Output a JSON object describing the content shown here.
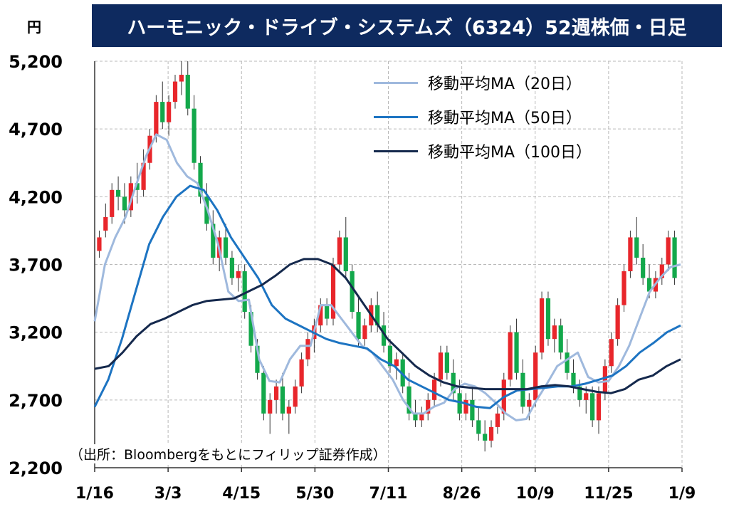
{
  "title": "ハーモニック・ドライブ・システムズ（6324）52週株価・日足",
  "unit_label": "円",
  "source_note": "（出所：Bloombergをもとにフィリップ証券作成）",
  "chart_data": {
    "type": "candlestick",
    "ylim": [
      2200,
      5200
    ],
    "y_ticks": [
      "5,200",
      "4,700",
      "4,200",
      "3,700",
      "3,200",
      "2,700",
      "2,200"
    ],
    "y_tick_values": [
      5200,
      4700,
      4200,
      3700,
      3200,
      2700,
      2200
    ],
    "x_ticks": [
      "1/16",
      "3/3",
      "4/15",
      "5/30",
      "7/11",
      "8/26",
      "10/9",
      "11/25",
      "1/9"
    ],
    "grid": true,
    "legend_position": "top-right",
    "colors": {
      "up": "#e8262b",
      "down": "#13a84b",
      "ma20": "#9fb9dd",
      "ma50": "#1d74c2",
      "ma100": "#15294d"
    },
    "series": [
      {
        "name": "移動平均MA（20日）",
        "values": [
          3280,
          3700,
          3900,
          4050,
          4280,
          4500,
          4660,
          4620,
          4450,
          4350,
          4300,
          4100,
          3850,
          3500,
          3430,
          3440,
          3000,
          2840,
          2830,
          3000,
          3100,
          3100,
          3400,
          3400,
          3300,
          3200,
          3100,
          3050,
          2950,
          2850,
          2700,
          2600,
          2600,
          2650,
          2680,
          2780,
          2820,
          2800,
          2750,
          2680,
          2600,
          2550,
          2560,
          2700,
          2820,
          2950,
          3000,
          3050,
          2870,
          2830,
          2840,
          2950,
          3100,
          3300,
          3500,
          3600,
          3680,
          3700
        ]
      },
      {
        "name": "移動平均MA（50日）",
        "values": [
          2650,
          2850,
          3150,
          3500,
          3850,
          4050,
          4200,
          4280,
          4250,
          4100,
          3900,
          3750,
          3600,
          3400,
          3300,
          3250,
          3200,
          3150,
          3120,
          3100,
          3080,
          3000,
          2950,
          2850,
          2800,
          2750,
          2700,
          2680,
          2650,
          2640,
          2720,
          2770,
          2780,
          2790,
          2800,
          2800,
          2820,
          2850,
          2880,
          2950,
          3050,
          3120,
          3200,
          3250
        ]
      },
      {
        "name": "移動平均MA（100日）",
        "values": [
          2930,
          2950,
          3050,
          3170,
          3260,
          3300,
          3350,
          3400,
          3430,
          3440,
          3450,
          3500,
          3550,
          3620,
          3700,
          3740,
          3740,
          3700,
          3600,
          3450,
          3300,
          3150,
          3050,
          2950,
          2880,
          2830,
          2800,
          2790,
          2780,
          2780,
          2780,
          2780,
          2800,
          2810,
          2800,
          2780,
          2760,
          2750,
          2780,
          2850,
          2880,
          2950,
          3000
        ]
      },
      {
        "name": "candles",
        "values": [
          [
            3800,
            3950,
            3750,
            3900
          ],
          [
            3950,
            4150,
            3900,
            4050
          ],
          [
            4050,
            4300,
            4000,
            4250
          ],
          [
            4250,
            4350,
            4100,
            4200
          ],
          [
            4200,
            4300,
            4000,
            4100
          ],
          [
            4100,
            4350,
            4050,
            4300
          ],
          [
            4300,
            4450,
            4150,
            4250
          ],
          [
            4250,
            4550,
            4200,
            4450
          ],
          [
            4450,
            4700,
            4400,
            4650
          ],
          [
            4650,
            4950,
            4600,
            4900
          ],
          [
            4900,
            5050,
            4700,
            4750
          ],
          [
            4750,
            4950,
            4650,
            4900
          ],
          [
            4900,
            5100,
            4850,
            5050
          ],
          [
            5050,
            5200,
            4950,
            5100
          ],
          [
            5100,
            5200,
            4800,
            4850
          ],
          [
            4850,
            4950,
            4400,
            4450
          ],
          [
            4450,
            4500,
            4150,
            4200
          ],
          [
            4200,
            4300,
            3950,
            4000
          ],
          [
            4000,
            4100,
            3700,
            3750
          ],
          [
            3750,
            3950,
            3650,
            3900
          ],
          [
            3900,
            4000,
            3700,
            3750
          ],
          [
            3750,
            3800,
            3550,
            3600
          ],
          [
            3600,
            3700,
            3500,
            3650
          ],
          [
            3650,
            3700,
            3300,
            3350
          ],
          [
            3350,
            3400,
            3050,
            3100
          ],
          [
            3100,
            3150,
            2850,
            2900
          ],
          [
            2900,
            2950,
            2550,
            2600
          ],
          [
            2600,
            2750,
            2450,
            2700
          ],
          [
            2700,
            2850,
            2600,
            2800
          ],
          [
            2800,
            2900,
            2550,
            2600
          ],
          [
            2600,
            2700,
            2450,
            2650
          ],
          [
            2650,
            2850,
            2600,
            2800
          ],
          [
            2800,
            3050,
            2750,
            3000
          ],
          [
            3000,
            3200,
            2950,
            3150
          ],
          [
            3150,
            3300,
            3050,
            3250
          ],
          [
            3250,
            3450,
            3200,
            3400
          ],
          [
            3400,
            3450,
            3250,
            3300
          ],
          [
            3300,
            3750,
            3250,
            3700
          ],
          [
            3700,
            3950,
            3650,
            3900
          ],
          [
            3900,
            4050,
            3600,
            3650
          ],
          [
            3650,
            3700,
            3300,
            3350
          ],
          [
            3350,
            3450,
            3100,
            3150
          ],
          [
            3150,
            3300,
            3100,
            3250
          ],
          [
            3250,
            3450,
            3200,
            3400
          ],
          [
            3400,
            3500,
            3200,
            3250
          ],
          [
            3250,
            3350,
            3050,
            3100
          ],
          [
            3100,
            3150,
            2900,
            2950
          ],
          [
            2950,
            3050,
            2850,
            3000
          ],
          [
            3000,
            3050,
            2750,
            2800
          ],
          [
            2800,
            2900,
            2550,
            2600
          ],
          [
            2600,
            2700,
            2500,
            2550
          ],
          [
            2550,
            2650,
            2500,
            2600
          ],
          [
            2600,
            2750,
            2550,
            2700
          ],
          [
            2700,
            2900,
            2650,
            2850
          ],
          [
            2850,
            3100,
            2800,
            3050
          ],
          [
            3050,
            3100,
            2850,
            2900
          ],
          [
            2900,
            3000,
            2700,
            2750
          ],
          [
            2750,
            2850,
            2550,
            2600
          ],
          [
            2600,
            2750,
            2550,
            2700
          ],
          [
            2700,
            2800,
            2500,
            2550
          ],
          [
            2550,
            2650,
            2400,
            2450
          ],
          [
            2450,
            2550,
            2320,
            2400
          ],
          [
            2400,
            2550,
            2350,
            2500
          ],
          [
            2500,
            2650,
            2450,
            2600
          ],
          [
            2600,
            2900,
            2550,
            2850
          ],
          [
            2850,
            3250,
            2800,
            3200
          ],
          [
            3200,
            3300,
            2850,
            2900
          ],
          [
            2900,
            3000,
            2600,
            2650
          ],
          [
            2650,
            2750,
            2550,
            2700
          ],
          [
            2700,
            3100,
            2650,
            3050
          ],
          [
            3050,
            3500,
            3000,
            3450
          ],
          [
            3450,
            3500,
            3100,
            3150
          ],
          [
            3150,
            3300,
            3050,
            3250
          ],
          [
            3250,
            3300,
            3000,
            3050
          ],
          [
            3050,
            3150,
            2850,
            2900
          ],
          [
            2900,
            3000,
            2750,
            2800
          ],
          [
            2800,
            2850,
            2650,
            2700
          ],
          [
            2700,
            2800,
            2600,
            2750
          ],
          [
            2750,
            2800,
            2500,
            2550
          ],
          [
            2550,
            2800,
            2450,
            2750
          ],
          [
            2750,
            3000,
            2700,
            2950
          ],
          [
            2950,
            3200,
            2900,
            3150
          ],
          [
            3150,
            3450,
            3100,
            3400
          ],
          [
            3400,
            3700,
            3350,
            3650
          ],
          [
            3650,
            3950,
            3600,
            3900
          ],
          [
            3900,
            4050,
            3700,
            3750
          ],
          [
            3750,
            3850,
            3550,
            3600
          ],
          [
            3600,
            3700,
            3450,
            3500
          ],
          [
            3500,
            3650,
            3450,
            3600
          ],
          [
            3600,
            3750,
            3550,
            3700
          ],
          [
            3700,
            3950,
            3650,
            3900
          ],
          [
            3900,
            3950,
            3550,
            3600
          ]
        ]
      }
    ]
  }
}
